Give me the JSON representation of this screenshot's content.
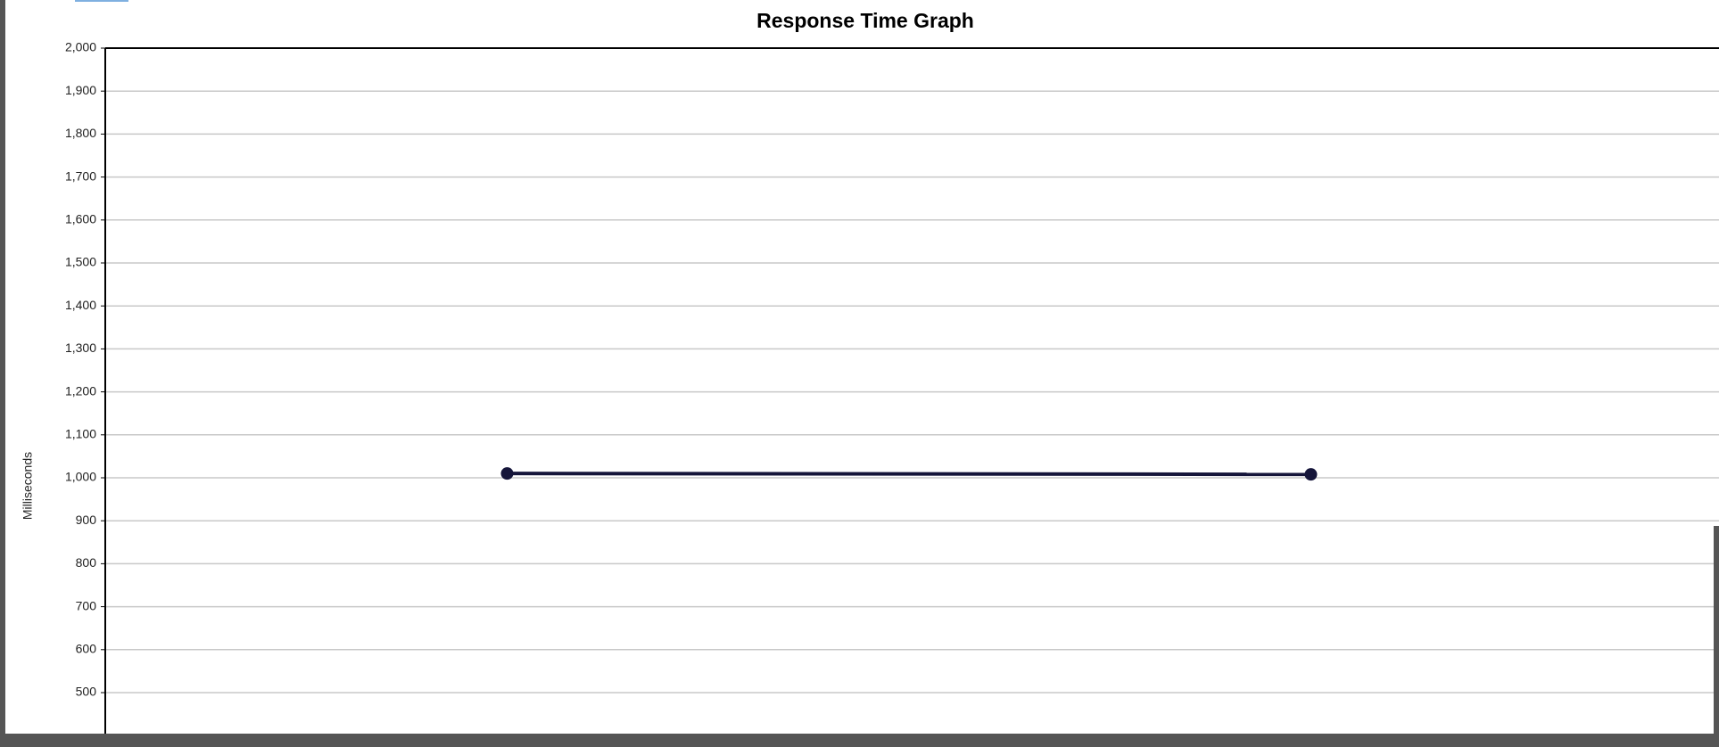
{
  "chart_data": {
    "type": "line",
    "title": "Response Time Graph",
    "y_label": "Milliseconds",
    "categories": [
      null,
      null
    ],
    "values": [
      1010,
      1008
    ],
    "color": "#15153a",
    "ylim": [
      0,
      2000
    ],
    "yticks": [
      {
        "value": 500,
        "label": "500"
      },
      {
        "value": 600,
        "label": "600"
      },
      {
        "value": 700,
        "label": "700"
      },
      {
        "value": 800,
        "label": "800"
      },
      {
        "value": 900,
        "label": "900"
      },
      {
        "value": 1000,
        "label": "1,000"
      },
      {
        "value": 1100,
        "label": "1,100"
      },
      {
        "value": 1200,
        "label": "1,200"
      },
      {
        "value": 1300,
        "label": "1,300"
      },
      {
        "value": 1400,
        "label": "1,400"
      },
      {
        "value": 1500,
        "label": "1,500"
      },
      {
        "value": 1600,
        "label": "1,600"
      },
      {
        "value": 1700,
        "label": "1,700"
      },
      {
        "value": 1800,
        "label": "1,800"
      },
      {
        "value": 1900,
        "label": "1,900"
      },
      {
        "value": 2000,
        "label": "2,000"
      }
    ],
    "grid": true
  }
}
